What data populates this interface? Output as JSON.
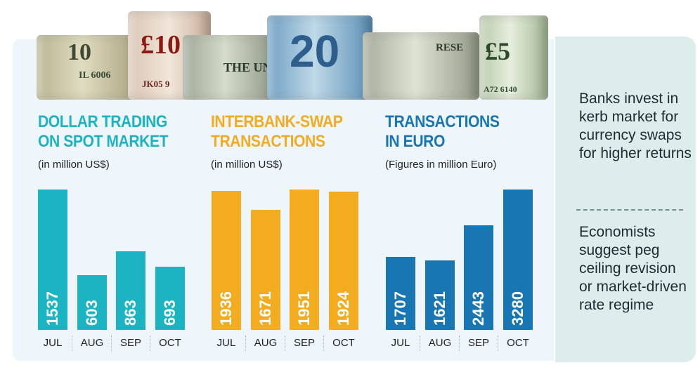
{
  "colors": {
    "teal": "#1cb4c2",
    "orange": "#f3ab1f",
    "blue": "#1877b2",
    "panel": "#eef6fb",
    "side": "#dcedeb"
  },
  "banknotes": [
    {
      "icon": "ten-dollar-note-icon",
      "text": "10",
      "serial": "IL 6006"
    },
    {
      "icon": "ten-pound-note-icon",
      "text": "£10",
      "serial": "JK05 9"
    },
    {
      "icon": "one-dollar-note-icon",
      "text": "THE UN"
    },
    {
      "icon": "twenty-euro-note-icon",
      "text": "20"
    },
    {
      "icon": "hundred-dollar-note-icon",
      "text": "RESE"
    },
    {
      "icon": "five-pound-note-icon",
      "text": "£5",
      "serial": "A72 6140"
    }
  ],
  "sidebar": {
    "point1": "Banks invest in kerb market for currency swaps for higher returns",
    "point2": "Economists suggest peg ceiling revision or market-driven rate regime"
  },
  "chart_data": [
    {
      "type": "bar",
      "title_line1": "DOLLAR TRADING",
      "title_line2": "ON SPOT MARKET",
      "subtitle": "(in million US$)",
      "categories": [
        "JUL",
        "AUG",
        "SEP",
        "OCT"
      ],
      "values": [
        1537,
        603,
        863,
        693
      ],
      "ylim": [
        0,
        1537
      ],
      "color": "#1cb4c2"
    },
    {
      "type": "bar",
      "title_line1": "INTERBANK-SWAP",
      "title_line2": "TRANSACTIONS",
      "subtitle": "(in million US$)",
      "categories": [
        "JUL",
        "AUG",
        "SEP",
        "OCT"
      ],
      "values": [
        1936,
        1671,
        1951,
        1924
      ],
      "ylim": [
        0,
        1951
      ],
      "color": "#f3ab1f"
    },
    {
      "type": "bar",
      "title_line1": "TRANSACTIONS",
      "title_line2": "IN EURO",
      "subtitle": "(Figures in million Euro)",
      "categories": [
        "JUL",
        "AUG",
        "SEP",
        "OCT"
      ],
      "values": [
        1707,
        1621,
        2443,
        3280
      ],
      "ylim": [
        0,
        3280
      ],
      "color": "#1877b2"
    }
  ]
}
